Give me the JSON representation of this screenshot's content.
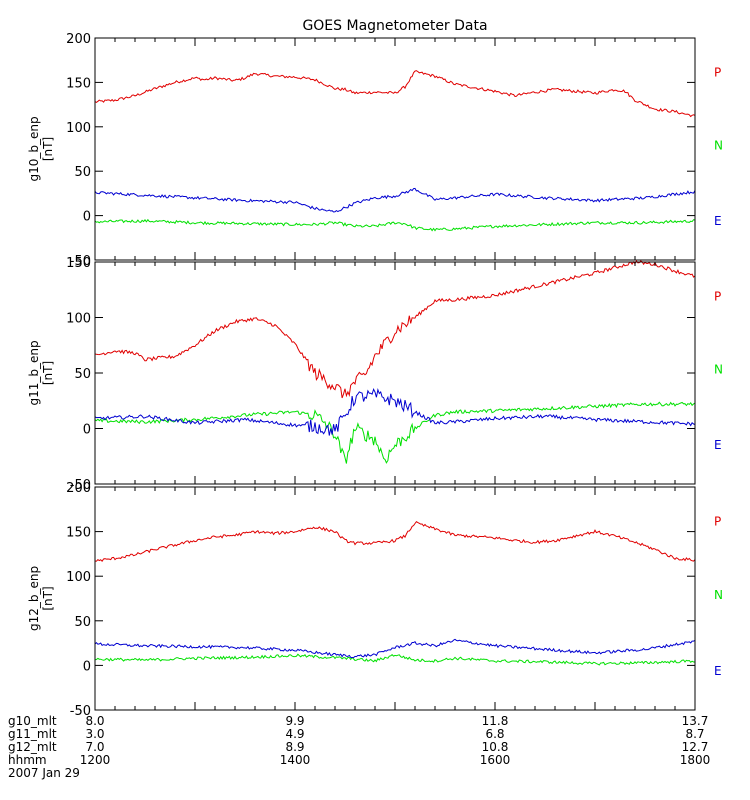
{
  "chart_data": {
    "type": "line",
    "title": "GOES Magnetometer Data",
    "x_range": [
      1200,
      1800
    ],
    "colors": {
      "P": "#e00000",
      "N": "#00e000",
      "E": "#0000d0",
      "axis": "#000000"
    },
    "panels": [
      {
        "ylabel_line1": "g10_b_enp",
        "ylabel_line2": "[nT]",
        "ylim": [
          -50,
          200
        ],
        "yticks": [
          -50,
          0,
          50,
          100,
          150,
          200
        ],
        "series": [
          {
            "name": "P",
            "x": [
              1200,
              1220,
              1240,
              1260,
              1280,
              1300,
              1310,
              1320,
              1340,
              1350,
              1360,
              1380,
              1400,
              1420,
              1440,
              1450,
              1460,
              1480,
              1500,
              1510,
              1520,
              1540,
              1560,
              1580,
              1600,
              1620,
              1640,
              1660,
              1680,
              1700,
              1720,
              1730,
              1740,
              1760,
              1780,
              1800
            ],
            "values": [
              128,
              130,
              135,
              143,
              150,
              155,
              153,
              155,
              152,
              155,
              160,
              157,
              156,
              153,
              143,
              142,
              138,
              139,
              138,
              145,
              162,
              157,
              148,
              144,
              140,
              135,
              139,
              142,
              140,
              138,
              142,
              140,
              130,
              120,
              117,
              112
            ]
          },
          {
            "name": "N",
            "x": [
              1200,
              1250,
              1300,
              1350,
              1400,
              1420,
              1440,
              1460,
              1480,
              1500,
              1510,
              1520,
              1540,
              1560,
              1600,
              1650,
              1700,
              1750,
              1800
            ],
            "values": [
              -7,
              -6,
              -8,
              -9,
              -10,
              -10,
              -8,
              -12,
              -12,
              -8,
              -9,
              -14,
              -16,
              -15,
              -12,
              -10,
              -8,
              -8,
              -6
            ]
          },
          {
            "name": "E",
            "x": [
              1200,
              1250,
              1300,
              1350,
              1400,
              1420,
              1440,
              1460,
              1480,
              1500,
              1520,
              1540,
              1560,
              1600,
              1650,
              1700,
              1750,
              1800
            ],
            "values": [
              26,
              23,
              20,
              17,
              15,
              8,
              4,
              14,
              20,
              22,
              30,
              18,
              20,
              24,
              20,
              17,
              20,
              27
            ]
          }
        ]
      },
      {
        "ylabel_line1": "g11_b_enp",
        "ylabel_line2": "[nT]",
        "ylim": [
          -50,
          150
        ],
        "yticks": [
          -50,
          0,
          50,
          100,
          150
        ],
        "series": [
          {
            "name": "P",
            "x": [
              1200,
              1220,
              1240,
              1250,
              1280,
              1300,
              1320,
              1340,
              1360,
              1380,
              1400,
              1420,
              1440,
              1450,
              1460,
              1470,
              1480,
              1500,
              1520,
              1540,
              1560,
              1600,
              1650,
              1700,
              1740,
              1760,
              1780,
              1800
            ],
            "values": [
              66,
              70,
              68,
              62,
              65,
              75,
              88,
              96,
              99,
              93,
              76,
              50,
              38,
              30,
              42,
              48,
              65,
              88,
              100,
              115,
              116,
              120,
              130,
              140,
              150,
              148,
              142,
              137
            ]
          },
          {
            "name": "N",
            "x": [
              1200,
              1250,
              1300,
              1350,
              1400,
              1420,
              1430,
              1440,
              1450,
              1460,
              1480,
              1490,
              1500,
              1520,
              1540,
              1560,
              1600,
              1650,
              1700,
              1750,
              1800
            ],
            "values": [
              7,
              6,
              8,
              12,
              15,
              12,
              5,
              -5,
              -30,
              0,
              -10,
              -28,
              -15,
              0,
              12,
              15,
              16,
              18,
              20,
              22,
              22
            ]
          },
          {
            "name": "E",
            "x": [
              1200,
              1250,
              1300,
              1350,
              1400,
              1420,
              1440,
              1450,
              1460,
              1480,
              1500,
              1520,
              1540,
              1560,
              1600,
              1650,
              1700,
              1750,
              1800
            ],
            "values": [
              9,
              11,
              5,
              8,
              3,
              2,
              -2,
              12,
              28,
              30,
              25,
              15,
              5,
              6,
              9,
              11,
              8,
              6,
              4
            ]
          }
        ]
      },
      {
        "ylabel_line1": "g12_b_enp",
        "ylabel_line2": "[nT]",
        "ylim": [
          -50,
          200
        ],
        "yticks": [
          -50,
          0,
          50,
          100,
          150,
          200
        ],
        "series": [
          {
            "name": "P",
            "x": [
              1200,
              1220,
              1240,
              1260,
              1280,
              1300,
              1320,
              1340,
              1360,
              1380,
              1400,
              1420,
              1440,
              1450,
              1460,
              1480,
              1500,
              1510,
              1520,
              1540,
              1560,
              1600,
              1620,
              1640,
              1660,
              1680,
              1700,
              1720,
              1740,
              1760,
              1780,
              1800
            ],
            "values": [
              117,
              120,
              124,
              130,
              135,
              140,
              144,
              146,
              150,
              148,
              150,
              155,
              150,
              140,
              137,
              137,
              140,
              145,
              160,
              153,
              146,
              143,
              140,
              138,
              140,
              145,
              150,
              145,
              138,
              130,
              120,
              118
            ]
          },
          {
            "name": "N",
            "x": [
              1200,
              1250,
              1300,
              1350,
              1400,
              1450,
              1480,
              1500,
              1520,
              1540,
              1560,
              1600,
              1650,
              1700,
              1750,
              1800
            ],
            "values": [
              7,
              6,
              8,
              9,
              11,
              8,
              5,
              12,
              6,
              5,
              8,
              5,
              4,
              2,
              3,
              5
            ]
          },
          {
            "name": "E",
            "x": [
              1200,
              1250,
              1300,
              1350,
              1400,
              1440,
              1460,
              1480,
              1500,
              1520,
              1540,
              1560,
              1600,
              1650,
              1700,
              1750,
              1800
            ],
            "values": [
              24,
              22,
              21,
              20,
              17,
              12,
              10,
              12,
              20,
              25,
              22,
              28,
              22,
              18,
              14,
              18,
              27
            ]
          }
        ]
      }
    ],
    "bottom_rows": [
      {
        "label": "g10_mlt",
        "values": [
          "8.0",
          "9.9",
          "11.8",
          "13.7"
        ]
      },
      {
        "label": "g11_mlt",
        "values": [
          "3.0",
          "4.9",
          "6.8",
          "8.7"
        ]
      },
      {
        "label": "g12_mlt",
        "values": [
          "7.0",
          "8.9",
          "10.8",
          "12.7"
        ]
      },
      {
        "label": "hhmm",
        "values": [
          "1200",
          "1400",
          "1600",
          "1800"
        ]
      }
    ],
    "bottom_tick_times": [
      1200,
      1400,
      1600,
      1800
    ],
    "date_label": "2007 Jan 29"
  }
}
